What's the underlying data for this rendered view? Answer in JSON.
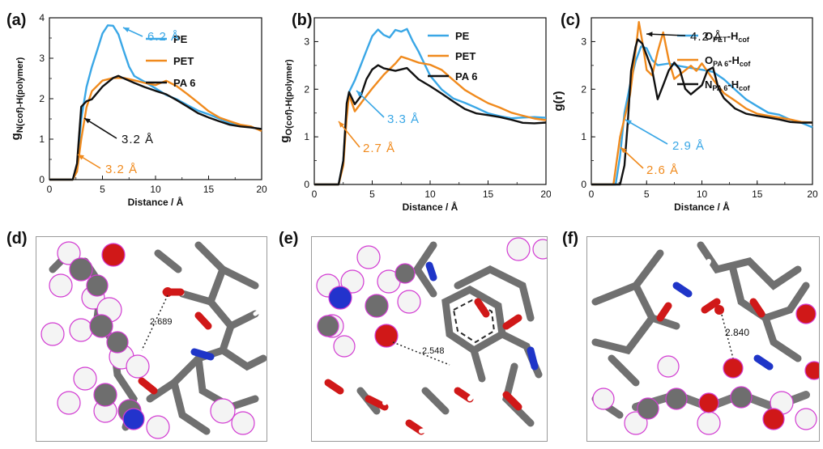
{
  "colors": {
    "pe": "#3aa7e6",
    "pet": "#f08a1d",
    "pa6": "#111111"
  },
  "chart_data": [
    {
      "panel": "(a)",
      "type": "line",
      "xlabel": "Distance / Å",
      "ylabel": "gN(cof)-H(polymer)",
      "ylabel_main": "g",
      "ylabel_sub": "N(cof)-H(polymer)",
      "xlim": [
        0,
        20
      ],
      "ylim": [
        0,
        4
      ],
      "xticks": [
        "0",
        "5",
        "10",
        "15",
        "20"
      ],
      "yticks": [
        "0",
        "1",
        "2",
        "3",
        "4"
      ],
      "legend": "top-right",
      "series": [
        {
          "name": "PE",
          "color": "#3aa7e6",
          "x": [
            0,
            2.2,
            2.6,
            3,
            3.5,
            4,
            4.5,
            5,
            5.5,
            6,
            6.5,
            7,
            7.5,
            8,
            9,
            10,
            11,
            12,
            13,
            14,
            15,
            16,
            17,
            18,
            19,
            20
          ],
          "y": [
            0,
            0,
            0.3,
            1.5,
            2.3,
            2.8,
            3.2,
            3.6,
            3.8,
            3.8,
            3.6,
            3.2,
            2.8,
            2.55,
            2.4,
            2.25,
            2.1,
            2.0,
            1.85,
            1.7,
            1.6,
            1.5,
            1.4,
            1.35,
            1.3,
            1.25
          ]
        },
        {
          "name": "PET",
          "color": "#f08a1d",
          "x": [
            0,
            2.2,
            2.6,
            3,
            3.5,
            4,
            5,
            6,
            7,
            8,
            9,
            10,
            11,
            12,
            13,
            14,
            15,
            16,
            17,
            18,
            19,
            20
          ],
          "y": [
            0,
            0,
            0.2,
            1.0,
            1.8,
            2.2,
            2.45,
            2.5,
            2.5,
            2.45,
            2.4,
            2.35,
            2.45,
            2.3,
            2.1,
            1.9,
            1.7,
            1.55,
            1.45,
            1.35,
            1.3,
            1.2
          ]
        },
        {
          "name": "PA 6",
          "color": "#111111",
          "x": [
            0,
            2.2,
            2.6,
            3,
            3.5,
            4,
            5,
            6,
            6.5,
            7,
            8,
            9,
            10,
            11,
            12,
            13,
            14,
            15,
            16,
            17,
            18,
            19,
            20
          ],
          "y": [
            0,
            0,
            0.4,
            1.8,
            1.95,
            2.0,
            2.3,
            2.5,
            2.55,
            2.5,
            2.4,
            2.3,
            2.2,
            2.1,
            1.95,
            1.8,
            1.65,
            1.55,
            1.45,
            1.35,
            1.3,
            1.28,
            1.25
          ]
        }
      ],
      "annotations": [
        {
          "text": "6.2 Å",
          "color": "#3aa7e6"
        },
        {
          "text": "3.2 Å",
          "color": "#111111"
        },
        {
          "text": "3.2 Å",
          "color": "#f08a1d"
        }
      ]
    },
    {
      "panel": "(b)",
      "type": "line",
      "xlabel": "Distance / Å",
      "ylabel": "gO(cof)-H(polymer)",
      "ylabel_main": "g",
      "ylabel_sub": "O(cof)-H(polymer)",
      "xlim": [
        0,
        20
      ],
      "ylim": [
        0,
        3.5
      ],
      "xticks": [
        "0",
        "5",
        "10",
        "15",
        "20"
      ],
      "yticks": [
        "0",
        "1",
        "2",
        "3"
      ],
      "legend": "top-right",
      "series": [
        {
          "name": "PE",
          "color": "#3aa7e6",
          "x": [
            0,
            2.1,
            2.5,
            2.8,
            3,
            3.5,
            4,
            4.5,
            5,
            5.5,
            6,
            6.5,
            7,
            7.5,
            8,
            8.5,
            9,
            10,
            11,
            12,
            13,
            14,
            15,
            16,
            17,
            18,
            19,
            20
          ],
          "y": [
            0,
            0,
            0.5,
            1.5,
            1.95,
            2.2,
            2.5,
            2.8,
            3.1,
            3.25,
            3.15,
            3.1,
            3.25,
            3.2,
            3.25,
            3.0,
            2.8,
            2.3,
            2.0,
            1.8,
            1.7,
            1.6,
            1.5,
            1.45,
            1.4,
            1.4,
            1.4,
            1.4
          ]
        },
        {
          "name": "PET",
          "color": "#f08a1d",
          "x": [
            0,
            2.1,
            2.5,
            2.8,
            3,
            3.5,
            4,
            4.5,
            5,
            6,
            7,
            7.5,
            8,
            9,
            10,
            11,
            12,
            13,
            14,
            15,
            16,
            17,
            18,
            19,
            20
          ],
          "y": [
            0,
            0,
            0.4,
            1.4,
            1.9,
            1.55,
            1.7,
            1.85,
            2.0,
            2.3,
            2.55,
            2.7,
            2.65,
            2.55,
            2.5,
            2.4,
            2.2,
            2.0,
            1.85,
            1.7,
            1.6,
            1.5,
            1.45,
            1.4,
            1.35
          ]
        },
        {
          "name": "PA 6",
          "color": "#111111",
          "x": [
            0,
            2.1,
            2.5,
            2.8,
            3,
            3.5,
            4,
            4.5,
            5,
            5.5,
            6,
            7,
            8,
            9,
            10,
            11,
            12,
            13,
            14,
            15,
            16,
            17,
            18,
            19,
            20
          ],
          "y": [
            0,
            0,
            0.5,
            1.7,
            1.95,
            1.7,
            1.85,
            2.2,
            2.4,
            2.5,
            2.45,
            2.4,
            2.45,
            2.2,
            2.05,
            1.9,
            1.75,
            1.6,
            1.5,
            1.45,
            1.4,
            1.35,
            1.3,
            1.3,
            1.3
          ]
        }
      ],
      "annotations": [
        {
          "text": "3.3 Å",
          "color": "#3aa7e6"
        },
        {
          "text": "2.7 Å",
          "color": "#f08a1d"
        }
      ]
    },
    {
      "panel": "(c)",
      "type": "line",
      "xlabel": "Distance / Å",
      "ylabel": "g(r)",
      "xlim": [
        0,
        20
      ],
      "ylim": [
        0,
        3.5
      ],
      "xticks": [
        "0",
        "5",
        "10",
        "15",
        "20"
      ],
      "yticks": [
        "0",
        "1",
        "2",
        "3"
      ],
      "legend": "top-right",
      "series": [
        {
          "name": "OPET-Hcof",
          "name_main": "O",
          "name_sub1": "PET",
          "name_mid": "-H",
          "name_sub2": "cof",
          "color": "#3aa7e6",
          "x": [
            0,
            2.2,
            2.6,
            3,
            3.5,
            4,
            4.5,
            5,
            5.5,
            6,
            7,
            8,
            9,
            10,
            11,
            12,
            13,
            14,
            15,
            16,
            17,
            18,
            19,
            20
          ],
          "y": [
            0,
            0,
            0.6,
            1.5,
            2.1,
            2.6,
            2.9,
            2.85,
            2.6,
            2.5,
            2.55,
            2.5,
            2.45,
            2.4,
            2.35,
            2.2,
            2.0,
            1.8,
            1.65,
            1.5,
            1.45,
            1.35,
            1.3,
            1.2
          ]
        },
        {
          "name": "OPA 6-Hcof",
          "name_main": "O",
          "name_sub1": "PA 6",
          "name_mid": "-H",
          "name_sub2": "cof",
          "color": "#f08a1d",
          "x": [
            0,
            2.0,
            2.3,
            2.6,
            3,
            3.5,
            4,
            4.3,
            4.6,
            5,
            5.5,
            6,
            6.5,
            7,
            7.5,
            8,
            9,
            9.5,
            10,
            11,
            12,
            13,
            14,
            15,
            16,
            17,
            18,
            19,
            20
          ],
          "y": [
            0,
            0,
            0.5,
            1.0,
            1.4,
            1.9,
            2.8,
            3.4,
            3.0,
            2.4,
            2.3,
            2.8,
            3.2,
            2.6,
            2.2,
            2.3,
            2.5,
            2.4,
            2.55,
            2.2,
            1.9,
            1.75,
            1.6,
            1.5,
            1.45,
            1.4,
            1.35,
            1.3,
            1.3
          ]
        },
        {
          "name": "NPA 6-Hcof",
          "name_main": "N",
          "name_sub1": "PA 6",
          "name_mid": "-H",
          "name_sub2": "cof",
          "color": "#111111",
          "x": [
            0,
            2.6,
            3,
            3.3,
            3.6,
            4,
            4.2,
            4.6,
            5,
            5.5,
            6,
            6.5,
            7,
            7.5,
            8,
            8.5,
            9,
            10,
            10.5,
            11,
            11.5,
            12,
            13,
            14,
            15,
            16,
            17,
            18,
            19,
            20
          ],
          "y": [
            0,
            0,
            0.4,
            1.3,
            2.4,
            2.9,
            3.05,
            2.95,
            2.7,
            2.4,
            1.8,
            2.1,
            2.4,
            2.55,
            2.4,
            2.0,
            1.9,
            2.1,
            2.4,
            2.45,
            2.0,
            1.8,
            1.6,
            1.5,
            1.45,
            1.4,
            1.35,
            1.3,
            1.3,
            1.3
          ]
        }
      ],
      "annotations": [
        {
          "text": "4.2 Å",
          "color": "#111111"
        },
        {
          "text": "2.9 Å",
          "color": "#3aa7e6"
        },
        {
          "text": "2.6 Å",
          "color": "#f08a1d"
        }
      ]
    }
  ],
  "snapshots": [
    {
      "panel": "(d)",
      "distance": "2.689"
    },
    {
      "panel": "(e)",
      "distance": "2.548"
    },
    {
      "panel": "(f)",
      "distance": "2.840"
    }
  ]
}
